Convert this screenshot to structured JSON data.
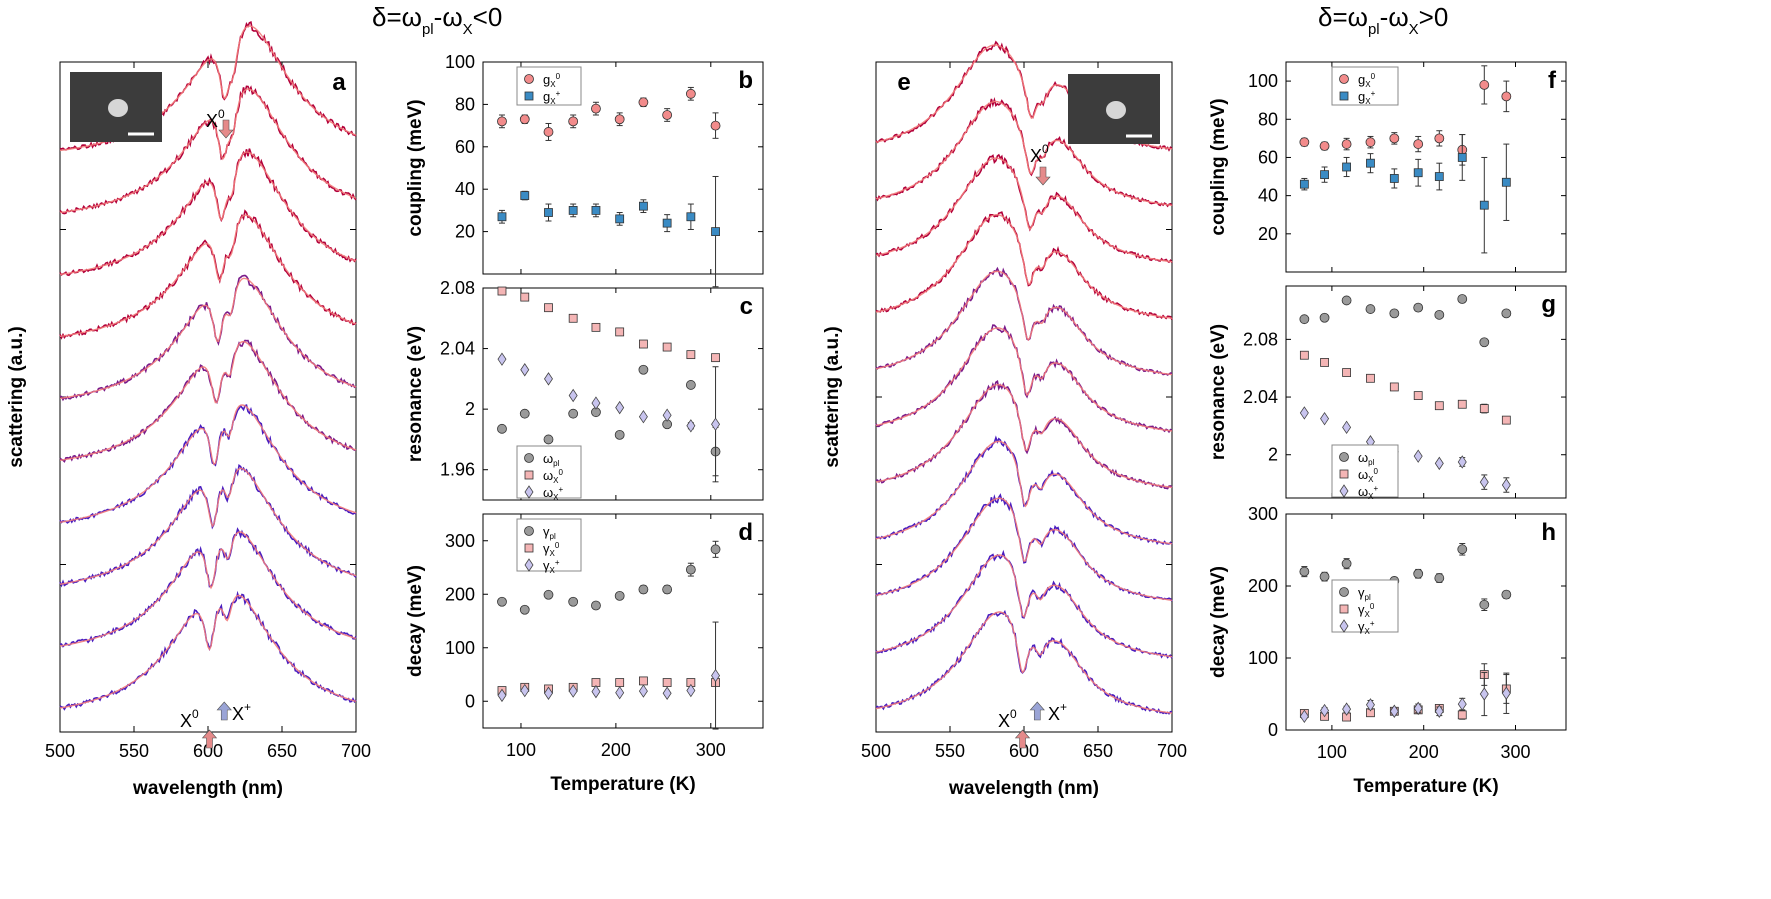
{
  "titles": {
    "left": {
      "pre": "δ=ω",
      "sub1": "pl",
      "mid": "-ω",
      "sub2": "X",
      "post": "<0"
    },
    "right": {
      "pre": "δ=ω",
      "sub1": "pl",
      "mid": "-ω",
      "sub2": "X",
      "post": ">0"
    }
  },
  "chart_data": [
    {
      "panel": "a",
      "type": "line",
      "xlabel": "wavelength (nm)",
      "ylabel": "scattering (a.u.)",
      "xlim": [
        500,
        700
      ],
      "xticks": [
        500,
        550,
        600,
        650,
        700
      ],
      "description_series": "10 vertically offset scattering spectra (measured, purple-red) with fits (light red)",
      "n_spectra": 10,
      "dip_X0_nm": 601,
      "dip_Xplus_nm": 613,
      "plasmon_peak_nm": 622,
      "annotations": {
        "x0_top": "X",
        "x0_top_sup": "0",
        "x0_bot": "X",
        "x0_bot_sup": "0",
        "xp_bot": "X",
        "xp_bot_sup": "+"
      },
      "inset": true
    },
    {
      "panel": "b",
      "type": "scatter",
      "ylabel": "coupling (meV)",
      "xlim": [
        60,
        355
      ],
      "ylim": [
        0,
        100
      ],
      "yticks": [
        20,
        40,
        60,
        80,
        100
      ],
      "legend": [
        {
          "name": "g",
          "sub": "X",
          "sup": "0"
        },
        {
          "name": "g",
          "sub": "X",
          "sup": "+"
        }
      ],
      "x": [
        80,
        104,
        129,
        155,
        179,
        204,
        229,
        254,
        279,
        305
      ],
      "series": [
        {
          "name": "gX0",
          "marker": "circle",
          "values": [
            72,
            73,
            67,
            72,
            78,
            73,
            81,
            75,
            85,
            70
          ],
          "err": [
            3,
            2,
            4,
            3,
            3,
            3,
            2,
            3,
            3,
            6
          ]
        },
        {
          "name": "gX+",
          "marker": "square",
          "values": [
            27,
            37,
            29,
            30,
            30,
            26,
            32,
            24,
            27,
            20
          ],
          "err": [
            3,
            2,
            4,
            3,
            3,
            3,
            3,
            4,
            6,
            26
          ]
        }
      ]
    },
    {
      "panel": "c",
      "type": "scatter",
      "ylabel": "resonance (eV)",
      "xlim": [
        60,
        355
      ],
      "ylim": [
        1.94,
        2.08
      ],
      "yticks": [
        1.96,
        2,
        2.04,
        2.08
      ],
      "ytick_labels": [
        "1.96",
        "2",
        "2.04",
        "2.08"
      ],
      "legend": [
        {
          "name": "ω",
          "sub": "pl",
          "sup": ""
        },
        {
          "name": "ω",
          "sub": "X",
          "sup": "0"
        },
        {
          "name": "ω",
          "sub": "X",
          "sup": "+"
        }
      ],
      "x": [
        80,
        104,
        129,
        155,
        179,
        204,
        229,
        254,
        279,
        305
      ],
      "series": [
        {
          "name": "ωpl",
          "marker": "circle",
          "values": [
            1.987,
            1.997,
            1.98,
            1.997,
            1.998,
            1.983,
            2.026,
            1.99,
            2.016,
            1.972
          ],
          "err": [
            0,
            0,
            0,
            0,
            0,
            0,
            0,
            0,
            0,
            0.016
          ]
        },
        {
          "name": "ωX0",
          "marker": "square",
          "values": [
            2.078,
            2.074,
            2.067,
            2.06,
            2.054,
            2.051,
            2.043,
            2.041,
            2.036,
            2.034
          ],
          "err": [
            0,
            0,
            0,
            0,
            0,
            0,
            0,
            0,
            0,
            0
          ]
        },
        {
          "name": "ωX+",
          "marker": "diamond",
          "values": [
            2.033,
            2.026,
            2.02,
            2.009,
            2.004,
            2.001,
            1.995,
            1.996,
            1.989,
            1.99
          ],
          "err": [
            0,
            0,
            0,
            0,
            0,
            0,
            0,
            0,
            0.002,
            0.038
          ]
        }
      ]
    },
    {
      "panel": "d",
      "type": "scatter",
      "ylabel": "decay (meV)",
      "xlabel": "Temperature (K)",
      "xlim": [
        60,
        355
      ],
      "ylim": [
        -50,
        350
      ],
      "yticks": [
        0,
        100,
        200,
        300
      ],
      "xticks": [
        100,
        200,
        300
      ],
      "legend": [
        {
          "name": "γ",
          "sub": "pl",
          "sup": ""
        },
        {
          "name": "γ",
          "sub": "X",
          "sup": "0"
        },
        {
          "name": "γ",
          "sub": "X",
          "sup": "+"
        }
      ],
      "x": [
        80,
        104,
        129,
        155,
        179,
        204,
        229,
        254,
        279,
        305
      ],
      "series": [
        {
          "name": "γpl",
          "marker": "circle",
          "values": [
            186,
            171,
            199,
            186,
            179,
            197,
            209,
            209,
            246,
            284
          ],
          "err": [
            5,
            5,
            6,
            5,
            5,
            5,
            7,
            7,
            12,
            15
          ]
        },
        {
          "name": "γX0",
          "marker": "square",
          "values": [
            20,
            26,
            23,
            26,
            35,
            35,
            38,
            35,
            35,
            35
          ],
          "err": [
            0,
            0,
            0,
            0,
            0,
            0,
            0,
            0,
            0,
            0
          ]
        },
        {
          "name": "γX+",
          "marker": "diamond",
          "values": [
            11,
            20,
            15,
            19,
            18,
            16,
            19,
            15,
            20,
            48
          ],
          "err": [
            0,
            0,
            0,
            0,
            0,
            0,
            0,
            0,
            0,
            100
          ]
        }
      ]
    },
    {
      "panel": "e",
      "type": "line",
      "xlabel": "wavelength (nm)",
      "ylabel": "scattering (a.u.)",
      "xlim": [
        500,
        700
      ],
      "xticks": [
        500,
        550,
        600,
        650,
        700
      ],
      "n_spectra": 11,
      "dip_X0_nm": 599,
      "dip_Xplus_nm": 611,
      "plasmon_peak_nm": 580,
      "annotations": {
        "x0_top": "X",
        "x0_top_sup": "0",
        "x0_bot": "X",
        "x0_bot_sup": "0",
        "xp_bot": "X",
        "xp_bot_sup": "+"
      },
      "inset": true
    },
    {
      "panel": "f",
      "type": "scatter",
      "ylabel": "coupling (meV)",
      "xlim": [
        50,
        355
      ],
      "ylim": [
        0,
        110
      ],
      "yticks": [
        20,
        40,
        60,
        80,
        100
      ],
      "legend": [
        {
          "name": "g",
          "sub": "X",
          "sup": "0"
        },
        {
          "name": "g",
          "sub": "X",
          "sup": "+"
        }
      ],
      "x": [
        70,
        92,
        116,
        142,
        168,
        194,
        217,
        242,
        266,
        290
      ],
      "series": [
        {
          "name": "gX0",
          "marker": "circle",
          "values": [
            68,
            66,
            67,
            68,
            70,
            67,
            70,
            64,
            98,
            92
          ],
          "err": [
            2,
            2,
            3,
            3,
            3,
            4,
            4,
            8,
            10,
            8
          ]
        },
        {
          "name": "gX+",
          "marker": "square",
          "values": [
            46,
            51,
            55,
            57,
            49,
            52,
            50,
            60,
            35,
            47
          ],
          "err": [
            3,
            4,
            5,
            5,
            5,
            7,
            7,
            12,
            25,
            20
          ]
        }
      ]
    },
    {
      "panel": "g",
      "type": "scatter",
      "ylabel": "resonance (eV)",
      "xlim": [
        50,
        355
      ],
      "ylim": [
        1.97,
        2.117
      ],
      "yticks": [
        2,
        2.04,
        2.08
      ],
      "ytick_labels": [
        "2",
        "2.04",
        "2.08"
      ],
      "legend": [
        {
          "name": "ω",
          "sub": "pl",
          "sup": ""
        },
        {
          "name": "ω",
          "sub": "X",
          "sup": "0"
        },
        {
          "name": "ω",
          "sub": "X",
          "sup": "+"
        }
      ],
      "x": [
        70,
        92,
        116,
        142,
        168,
        194,
        217,
        242,
        266,
        290
      ],
      "series": [
        {
          "name": "ωpl",
          "marker": "circle",
          "values": [
            2.094,
            2.095,
            2.107,
            2.101,
            2.098,
            2.102,
            2.097,
            2.108,
            2.078,
            2.098
          ],
          "err": [
            0,
            0,
            0,
            0,
            0,
            0,
            0,
            0.002,
            0,
            0
          ]
        },
        {
          "name": "ωX0",
          "marker": "square",
          "values": [
            2.069,
            2.064,
            2.057,
            2.053,
            2.047,
            2.041,
            2.034,
            2.035,
            2.032,
            2.024
          ],
          "err": [
            0,
            0,
            0,
            0,
            0,
            0,
            0,
            0,
            0.003,
            0.002
          ]
        },
        {
          "name": "ωX+",
          "marker": "diamond",
          "values": [
            2.029,
            2.025,
            2.019,
            2.009,
            2.002,
            1.999,
            1.994,
            1.995,
            1.981,
            1.979
          ],
          "err": [
            0,
            0,
            0,
            0,
            0,
            0,
            0,
            0.003,
            0.005,
            0.005
          ]
        }
      ]
    },
    {
      "panel": "h",
      "type": "scatter",
      "ylabel": "decay (meV)",
      "xlabel": "Temperature (K)",
      "xlim": [
        50,
        355
      ],
      "ylim": [
        0,
        300
      ],
      "yticks": [
        0,
        100,
        200,
        300
      ],
      "xticks": [
        100,
        200,
        300
      ],
      "legend": [
        {
          "name": "γ",
          "sub": "pl",
          "sup": ""
        },
        {
          "name": "γ",
          "sub": "X",
          "sup": "0"
        },
        {
          "name": "γ",
          "sub": "X",
          "sup": "+"
        }
      ],
      "x": [
        70,
        92,
        116,
        142,
        168,
        194,
        217,
        242,
        266,
        290
      ],
      "series": [
        {
          "name": "γpl",
          "marker": "circle",
          "values": [
            220,
            213,
            231,
            200,
            207,
            217,
            211,
            251,
            174,
            188
          ],
          "err": [
            7,
            6,
            7,
            6,
            5,
            6,
            6,
            8,
            8,
            5
          ]
        },
        {
          "name": "γX0",
          "marker": "square",
          "values": [
            23,
            19,
            18,
            24,
            26,
            28,
            30,
            21,
            77,
            57
          ],
          "err": [
            3,
            3,
            3,
            3,
            3,
            4,
            4,
            6,
            15,
            20
          ]
        },
        {
          "name": "γX+",
          "marker": "diamond",
          "values": [
            19,
            27,
            29,
            35,
            26,
            30,
            26,
            36,
            50,
            51
          ],
          "err": [
            3,
            4,
            4,
            6,
            4,
            6,
            6,
            8,
            30,
            28
          ]
        }
      ]
    }
  ],
  "colors": {
    "spectrum": "#b2003a",
    "spectrum_blue": "#4a1dbf",
    "fit": "#f27a7a",
    "circle_red": "#f28b8b",
    "square_blue": "#3a8bc4",
    "circle_grey": "#9a9a9a",
    "square_pink": "#f4b5b5",
    "diamond_lav": "#c8c4ee",
    "arrow_red": "#e58a8a",
    "arrow_blue": "#9aa4d6"
  }
}
